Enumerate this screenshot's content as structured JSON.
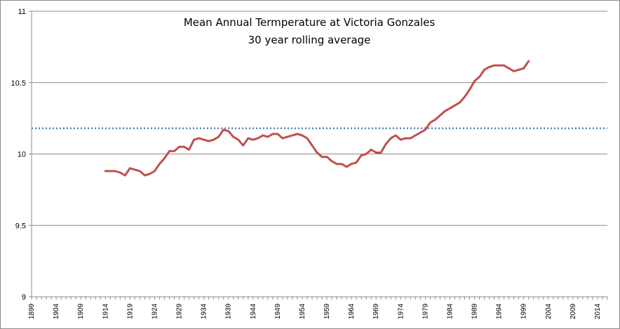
{
  "chart_data": {
    "type": "line",
    "title": "Mean Annual Termperature at Victoria Gonzales",
    "subtitle": "30 year rolling average",
    "xlabel": "",
    "ylabel": "",
    "ylim": [
      9,
      11
    ],
    "yticks": [
      "9",
      "9.5",
      "10",
      "10.5",
      "11"
    ],
    "xlim": [
      1899,
      2016
    ],
    "xticks": [
      "1899",
      "1904",
      "1909",
      "1914",
      "1919",
      "1924",
      "1929",
      "1934",
      "1939",
      "1944",
      "1949",
      "1954",
      "1959",
      "1964",
      "1969",
      "1974",
      "1979",
      "1984",
      "1989",
      "1994",
      "1999",
      "2004",
      "2009",
      "2014"
    ],
    "grid": "horizontal",
    "legend": "none",
    "reference_line": {
      "value": 10.18,
      "style": "dotted",
      "color": "#4f81bd"
    },
    "series": [
      {
        "color": "#c0504d",
        "x": [
          1914,
          1915,
          1916,
          1917,
          1918,
          1919,
          1920,
          1921,
          1922,
          1923,
          1924,
          1925,
          1926,
          1927,
          1928,
          1929,
          1930,
          1931,
          1932,
          1933,
          1934,
          1935,
          1936,
          1937,
          1938,
          1939,
          1940,
          1941,
          1942,
          1943,
          1944,
          1945,
          1946,
          1947,
          1948,
          1949,
          1950,
          1951,
          1952,
          1953,
          1954,
          1955,
          1956,
          1957,
          1958,
          1959,
          1960,
          1961,
          1962,
          1963,
          1964,
          1965,
          1966,
          1967,
          1968,
          1969,
          1970,
          1971,
          1972,
          1973,
          1974,
          1975,
          1976,
          1977,
          1978,
          1979,
          1980,
          1981,
          1982,
          1983,
          1984,
          1985,
          1986,
          1987,
          1988,
          1989,
          1990,
          1991,
          1992,
          1993,
          1994,
          1995,
          1996,
          1997,
          1998,
          1999,
          2000
        ],
        "y": [
          9.88,
          9.88,
          9.88,
          9.87,
          9.85,
          9.9,
          9.89,
          9.88,
          9.85,
          9.86,
          9.88,
          9.93,
          9.97,
          10.02,
          10.02,
          10.05,
          10.05,
          10.03,
          10.1,
          10.11,
          10.1,
          10.09,
          10.1,
          10.12,
          10.17,
          10.16,
          10.12,
          10.1,
          10.06,
          10.11,
          10.1,
          10.11,
          10.13,
          10.12,
          10.14,
          10.14,
          10.11,
          10.12,
          10.13,
          10.14,
          10.13,
          10.11,
          10.06,
          10.01,
          9.98,
          9.98,
          9.95,
          9.93,
          9.93,
          9.91,
          9.93,
          9.94,
          9.99,
          10.0,
          10.03,
          10.01,
          10.01,
          10.07,
          10.11,
          10.13,
          10.1,
          10.11,
          10.11,
          10.13,
          10.15,
          10.17,
          10.22,
          10.24,
          10.27,
          10.3,
          10.32,
          10.34,
          10.36,
          10.4,
          10.45,
          10.51,
          10.54,
          10.59,
          10.61,
          10.62,
          10.62,
          10.62,
          10.6,
          10.58,
          10.59,
          10.6,
          10.65
        ]
      }
    ]
  }
}
